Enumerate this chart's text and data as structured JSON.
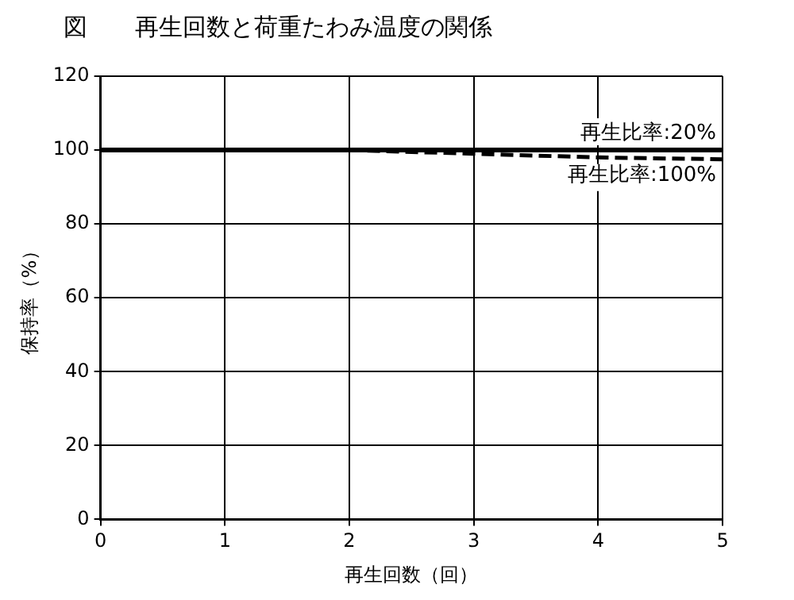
{
  "chart_data": {
    "type": "line",
    "title": "図　　再生回数と荷重たわみ温度の関係",
    "xlabel": "再生回数（回）",
    "ylabel": "保持率（%）",
    "x": [
      0,
      1,
      2,
      3,
      4,
      5
    ],
    "series": [
      {
        "name": "再生比率:20%",
        "color": "#000000",
        "values": [
          100,
          100,
          100,
          100,
          100,
          100
        ],
        "line_style": "solid"
      },
      {
        "name": "再生比率:100%",
        "color": "#000000",
        "values": [
          100,
          100,
          100,
          99,
          98,
          97.5
        ],
        "line_style": "dashed"
      }
    ],
    "xlim": [
      0,
      5
    ],
    "xticks": [
      0,
      1,
      2,
      3,
      4,
      5
    ],
    "ylim": [
      0,
      120
    ],
    "yticks": [
      0,
      20,
      40,
      60,
      80,
      100,
      120
    ],
    "grid": true,
    "legend": false,
    "marker": "none"
  }
}
